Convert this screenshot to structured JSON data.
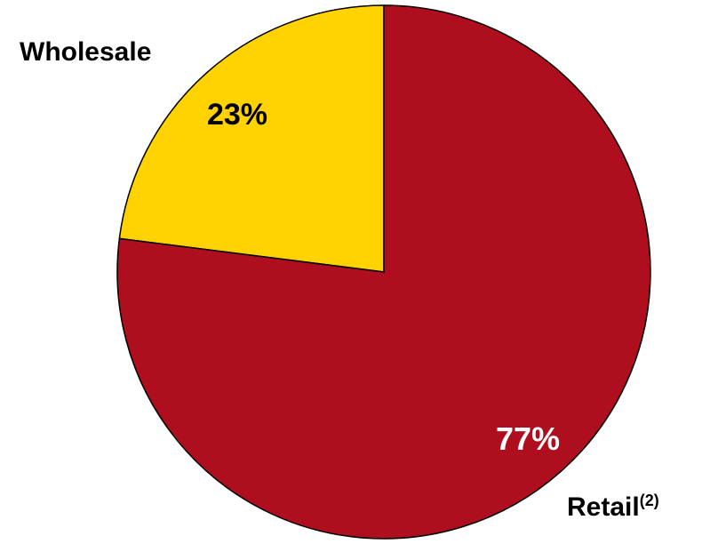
{
  "chart_data": {
    "type": "pie",
    "title": "",
    "slices": [
      {
        "id": "wholesale",
        "category": "Wholesale",
        "category_sup": "",
        "value": 23,
        "value_label": "23%",
        "color": "#FFD200",
        "label_color": "#000000",
        "value_color": "#000000"
      },
      {
        "id": "retail",
        "category": "Retail",
        "category_sup": "(2)",
        "value": 77,
        "value_label": "77%",
        "color": "#AE0E1E",
        "label_color": "#000000",
        "value_color": "#FFFFFF"
      }
    ],
    "start_angle_deg": -90,
    "direction": "counterclockwise_from_top_for_first_slice",
    "outline_color": "#000000",
    "legend": "none"
  }
}
